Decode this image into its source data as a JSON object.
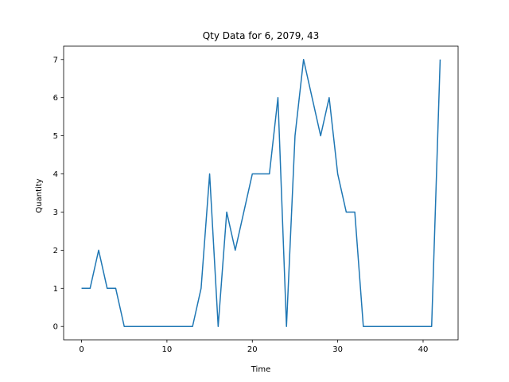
{
  "chart_data": {
    "type": "line",
    "title": "Qty Data for 6, 2079, 43",
    "xlabel": "Time",
    "ylabel": "Quantity",
    "xlim": [
      -2.1,
      44.1
    ],
    "ylim": [
      -0.35,
      7.35
    ],
    "xticks": [
      0,
      10,
      20,
      30,
      40
    ],
    "yticks": [
      0,
      1,
      2,
      3,
      4,
      5,
      6,
      7
    ],
    "grid": false,
    "series": [
      {
        "color": "#1f77b4",
        "x": [
          0,
          1,
          2,
          3,
          4,
          5,
          6,
          7,
          8,
          9,
          10,
          11,
          12,
          13,
          14,
          15,
          16,
          17,
          18,
          19,
          20,
          21,
          22,
          23,
          24,
          25,
          26,
          27,
          28,
          29,
          30,
          31,
          32,
          33,
          34,
          35,
          36,
          37,
          38,
          39,
          40,
          41,
          42
        ],
        "y": [
          1,
          1,
          2,
          1,
          1,
          0,
          0,
          0,
          0,
          0,
          0,
          0,
          0,
          0,
          1,
          4,
          0,
          3,
          2,
          3,
          4,
          4,
          4,
          6,
          0,
          5,
          7,
          6,
          5,
          6,
          4,
          3,
          3,
          0,
          0,
          0,
          0,
          0,
          0,
          0,
          0,
          0,
          7
        ]
      }
    ]
  }
}
